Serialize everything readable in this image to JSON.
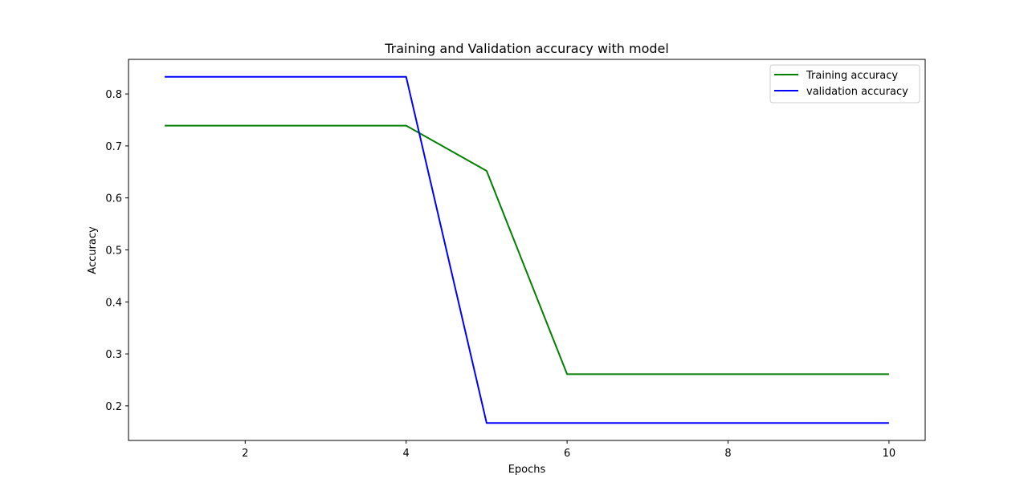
{
  "chart_data": {
    "type": "line",
    "title": "Training and Validation accuracy with model",
    "xlabel": "Epochs",
    "ylabel": "Accuracy",
    "xlim": [
      0.55,
      10.45
    ],
    "ylim": [
      0.1335,
      0.8665
    ],
    "xticks": [
      2,
      4,
      6,
      8,
      10
    ],
    "yticks": [
      0.2,
      0.3,
      0.4,
      0.5,
      0.6,
      0.7,
      0.8
    ],
    "xtick_labels": [
      "2",
      "4",
      "6",
      "8",
      "10"
    ],
    "ytick_labels": [
      "0.2",
      "0.3",
      "0.4",
      "0.5",
      "0.6",
      "0.7",
      "0.8"
    ],
    "x": [
      1,
      2,
      3,
      4,
      5,
      6,
      7,
      8,
      9,
      10
    ],
    "series": [
      {
        "name": "Training accuracy",
        "color": "#008000",
        "values": [
          0.739,
          0.739,
          0.739,
          0.739,
          0.652,
          0.261,
          0.261,
          0.261,
          0.261,
          0.261
        ]
      },
      {
        "name": "validation accuracy",
        "color": "#0000ff",
        "values": [
          0.833,
          0.833,
          0.833,
          0.833,
          0.167,
          0.167,
          0.167,
          0.167,
          0.167,
          0.167
        ]
      }
    ],
    "legend_position": "top-right",
    "grid": false
  }
}
